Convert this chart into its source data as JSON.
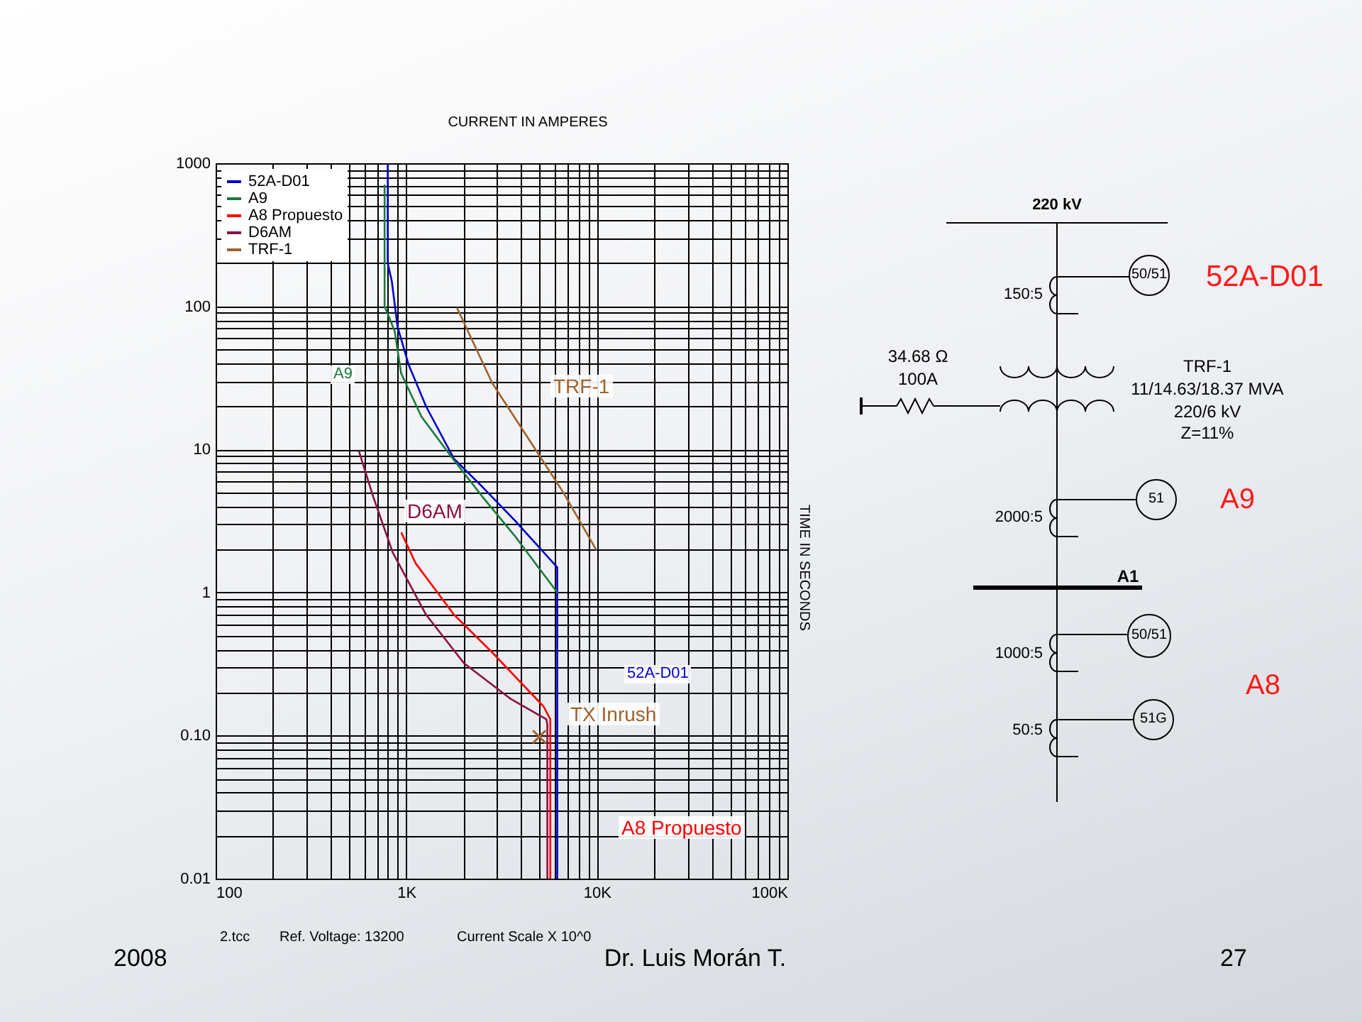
{
  "chart_data": {
    "type": "line",
    "xlabel": "CURRENT IN AMPERES",
    "ylabel": "TIME IN SECONDS",
    "log": "xy",
    "grid": true,
    "legend": "top left",
    "line_style": "solid",
    "xlim": [
      100,
      100000
    ],
    "ylim": [
      0.01,
      1000
    ],
    "xticks": [
      100,
      {
        "value": 200,
        "label": null
      },
      {
        "value": 300,
        "label": null
      },
      {
        "value": 400,
        "label": null
      },
      {
        "value": 500,
        "label": null
      },
      {
        "value": 600,
        "label": null
      },
      {
        "value": 700,
        "label": null
      },
      {
        "value": 800,
        "label": null
      },
      {
        "value": 900,
        "label": null
      },
      {
        "value": 1000,
        "label": "1K"
      },
      {
        "value": 2000,
        "label": null
      },
      {
        "value": 3000,
        "label": null
      },
      {
        "value": 4000,
        "label": null
      },
      {
        "value": 5000,
        "label": null
      },
      {
        "value": 6000,
        "label": null
      },
      {
        "value": 7000,
        "label": null
      },
      {
        "value": 8000,
        "label": null
      },
      {
        "value": 9000,
        "label": null
      },
      {
        "value": 10000,
        "label": "10K"
      },
      {
        "value": 20000,
        "label": null
      },
      {
        "value": 30000,
        "label": null
      },
      {
        "value": 40000,
        "label": null
      },
      {
        "value": 50000,
        "label": null
      },
      {
        "value": 60000,
        "label": null
      },
      {
        "value": 70000,
        "label": null
      },
      {
        "value": 80000,
        "label": null
      },
      {
        "value": 90000,
        "label": null
      },
      {
        "value": 100000,
        "label": "100K"
      }
    ],
    "yticks": [
      0.01,
      {
        "value": 0.02,
        "label": null
      },
      {
        "value": 0.03,
        "label": null
      },
      {
        "value": 0.04,
        "label": null
      },
      {
        "value": 0.05,
        "label": null
      },
      {
        "value": 0.06,
        "label": null
      },
      {
        "value": 0.07,
        "label": null
      },
      {
        "value": 0.08,
        "label": null
      },
      {
        "value": 0.09,
        "label": null
      },
      {
        "value": 0.1,
        "label": "0.10"
      },
      {
        "value": 0.2,
        "label": null
      },
      {
        "value": 0.3,
        "label": null
      },
      {
        "value": 0.4,
        "label": null
      },
      {
        "value": 0.5,
        "label": null
      },
      {
        "value": 0.6,
        "label": null
      },
      {
        "value": 0.7,
        "label": null
      },
      {
        "value": 0.8,
        "label": null
      },
      {
        "value": 0.9,
        "label": null
      },
      1,
      {
        "value": 2,
        "label": null
      },
      {
        "value": 3,
        "label": null
      },
      {
        "value": 4,
        "label": null
      },
      {
        "value": 5,
        "label": null
      },
      {
        "value": 6,
        "label": null
      },
      {
        "value": 7,
        "label": null
      },
      {
        "value": 8,
        "label": null
      },
      {
        "value": 9,
        "label": null
      },
      10,
      {
        "value": 20,
        "label": null
      },
      {
        "value": 30,
        "label": null
      },
      {
        "value": 40,
        "label": null
      },
      {
        "value": 50,
        "label": null
      },
      {
        "value": 60,
        "label": null
      },
      {
        "value": 70,
        "label": null
      },
      {
        "value": 80,
        "label": null
      },
      {
        "value": 90,
        "label": null
      },
      100,
      {
        "value": 200,
        "label": null
      },
      {
        "value": 300,
        "label": null
      },
      {
        "value": 400,
        "label": null
      },
      {
        "value": 500,
        "label": null
      },
      {
        "value": 600,
        "label": null
      },
      {
        "value": 700,
        "label": null
      },
      {
        "value": 800,
        "label": null
      },
      {
        "value": 900,
        "label": null
      },
      1000
    ],
    "series": [
      {
        "name": "52A-D01",
        "color": "#0000cc",
        "x": [
          800,
          800,
          840,
          900,
          1030,
          1270,
          1780,
          2500,
          3700,
          6200,
          6200
        ],
        "values": [
          1000,
          200,
          150,
          72,
          39,
          20,
          8.6,
          5.5,
          3.2,
          1.5,
          0.01
        ]
      },
      {
        "name": "A9",
        "color": "#1a7a3a",
        "x": [
          770,
          770,
          870,
          940,
          1200,
          1690,
          2500,
          3700,
          6200
        ],
        "values": [
          700,
          100,
          67,
          34,
          17,
          9.2,
          4.7,
          2.5,
          1.0
        ]
      },
      {
        "name": "A8 Propuesto",
        "color": "#ff0000",
        "x": [
          945,
          1120,
          1780,
          2830,
          5250,
          5700,
          5700
        ],
        "values": [
          2.6,
          1.6,
          0.7,
          0.38,
          0.16,
          0.13,
          0.01
        ]
      },
      {
        "name": "D6AM",
        "color": "#8b1040",
        "x": [
          565,
          670,
          850,
          1270,
          2010,
          3540,
          5430,
          5500,
          5500
        ],
        "values": [
          9.7,
          4.7,
          1.9,
          0.7,
          0.32,
          0.18,
          0.13,
          0.12,
          0.01
        ]
      },
      {
        "name": "TRF-1",
        "color": "#a0622d",
        "x": [
          1850,
          2830,
          4430,
          6670,
          9900
        ],
        "values": [
          97,
          29,
          11.6,
          5.0,
          2.0
        ]
      },
      {
        "type": "scatter",
        "marker": "cross",
        "color": "#a0622d",
        "x": [
          4990
        ],
        "values": [
          0.098
        ]
      }
    ],
    "annotations": [
      "52A-D01",
      "A9",
      "A8 Propuesto",
      "D6AM",
      "TRF-1",
      "TX Inrush",
      "220 kV",
      "150:5",
      "50/51",
      "52A-D01",
      "34.68 Ω",
      "100A",
      "TRF-1",
      "11/14.63/18.37 MVA",
      "220/6 kV",
      "Z=11%",
      "2000:5",
      "51",
      "A9",
      "A1",
      "1000:5",
      "50/51",
      "A8",
      "50:5",
      "51G",
      "2.tcc",
      "Ref. Voltage: 13200",
      "Current Scale X 10^0",
      "2008",
      "Dr. Luis Morán T.",
      "27"
    ]
  }
}
